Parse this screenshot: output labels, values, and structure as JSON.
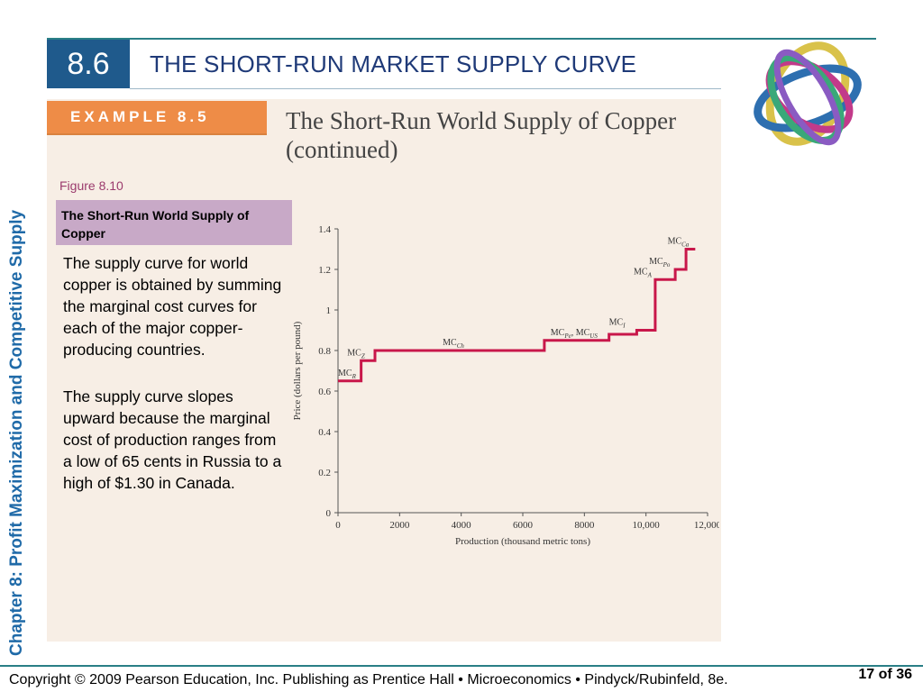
{
  "header": {
    "section_number": "8.6",
    "title": "THE SHORT-RUN MARKET SUPPLY CURVE"
  },
  "example": {
    "tag": "EXAMPLE 8.5",
    "title": "The Short-Run World Supply of Copper (continued)"
  },
  "figure": {
    "label": "Figure 8.10",
    "caption": "The Short-Run World Supply of Copper",
    "paragraphs": [
      "The supply curve for world copper is obtained by summing the marginal cost curves for each of the major copper-producing countries.",
      "The supply curve slopes upward because the marginal cost of production ranges from a low of 65 cents in Russia to a high of $1.30 in Canada."
    ]
  },
  "side_label": "Chapter 8:  Profit Maximization and Competitive Supply",
  "footer": {
    "copyright": "Copyright © 2009 Pearson Education, Inc. Publishing as Prentice Hall  •  Microeconomics  •  Pindyck/Rubinfeld, 8e.",
    "page": "17 of 36"
  },
  "colors": {
    "accent_blue": "#1f5a8c",
    "accent_orange": "#ee8c47",
    "curve_red": "#c8174a",
    "caption_purple": "#c8a9c7"
  },
  "chart_data": {
    "type": "line",
    "xlabel": "Production (thousand metric tons)",
    "ylabel": "Price (dollars per pound)",
    "xlim": [
      0,
      12000
    ],
    "ylim": [
      0,
      1.4
    ],
    "x_ticks": [
      0,
      2000,
      4000,
      6000,
      8000,
      10000,
      12000
    ],
    "x_tick_labels": [
      "0",
      "2000",
      "4000",
      "6000",
      "8000",
      "10,000",
      "12,000"
    ],
    "y_ticks": [
      0,
      0.2,
      0.4,
      0.6,
      0.8,
      1,
      1.2,
      1.4
    ],
    "y_tick_labels": [
      "0",
      "0.2",
      "0.4",
      "0.6",
      "0.8",
      "1",
      "1.2",
      "1.4"
    ],
    "series": [
      {
        "x": [
          0,
          750,
          750,
          1200,
          1200,
          6700,
          6700,
          8800,
          8800,
          9700,
          9700,
          10300,
          10300,
          10950,
          10950,
          11300,
          11300,
          11600
        ],
        "y": [
          0.65,
          0.65,
          0.75,
          0.75,
          0.8,
          0.8,
          0.85,
          0.85,
          0.88,
          0.88,
          0.9,
          0.9,
          1.15,
          1.15,
          1.2,
          1.2,
          1.3,
          1.3
        ]
      }
    ],
    "annotations": [
      {
        "base": "MC",
        "sub": "R",
        "x": 0,
        "y": 0.65
      },
      {
        "base": "MC",
        "sub": "Z",
        "x": 300,
        "y": 0.75
      },
      {
        "base": "MC",
        "sub": "Ch",
        "x": 3400,
        "y": 0.8
      },
      {
        "base": "MC",
        "sub": "Pe",
        "base2": "MC",
        "sub2": "US",
        "x": 6900,
        "y": 0.85
      },
      {
        "base": "MC",
        "sub": "I",
        "x": 8800,
        "y": 0.9
      },
      {
        "base": "MC",
        "sub": "A",
        "x": 9600,
        "y": 1.15
      },
      {
        "base": "MC",
        "sub": "Po",
        "x": 10100,
        "y": 1.2
      },
      {
        "base": "MC",
        "sub": "Ca",
        "x": 10700,
        "y": 1.3
      }
    ]
  }
}
